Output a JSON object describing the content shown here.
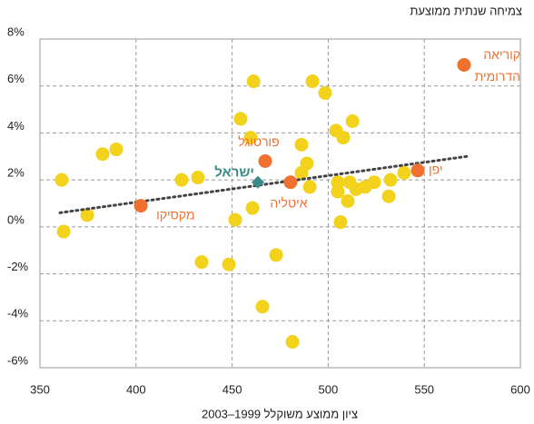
{
  "chart_data": {
    "type": "scatter",
    "title": "צמיחה שנתית ממוצעת",
    "x_label": "ציון ממוצע משוקלל 1999–2003",
    "xlim": [
      350,
      600
    ],
    "xticks": [
      350,
      400,
      450,
      500,
      550,
      600
    ],
    "ylim": [
      -6,
      8
    ],
    "yticks": [
      {
        "value": -6,
        "label": "-6%"
      },
      {
        "value": -4,
        "label": "-4%"
      },
      {
        "value": -2,
        "label": "-2%"
      },
      {
        "value": 0,
        "label": "0%"
      },
      {
        "value": 2,
        "label": "2%"
      },
      {
        "value": 4,
        "label": "4%"
      },
      {
        "value": 6,
        "label": "6%"
      },
      {
        "value": 8,
        "label": "8%"
      }
    ],
    "grid": true,
    "series": [
      {
        "color": "#f2d21b",
        "x": [
          361.3,
          362.3,
          374.6,
          382.6,
          389.7,
          423.7,
          432.2,
          434.1,
          448.3,
          451.6,
          454.4,
          460.6,
          459.6,
          461.1,
          465.8,
          472.9,
          481.4,
          486.1,
          486.1,
          488.9,
          490.4,
          491.8,
          498.4,
          504.1,
          507.8,
          512.6,
          505.0,
          505.0,
          510.2,
          506.4,
          511.2,
          514.5,
          519.2,
          523.9,
          531.5,
          532.4,
          539.5
        ],
        "values": [
          2.0,
          -0.2,
          0.5,
          3.1,
          3.3,
          2.0,
          2.1,
          -1.5,
          -1.6,
          0.3,
          4.6,
          0.8,
          3.8,
          6.2,
          -3.4,
          -1.2,
          -4.9,
          3.5,
          2.3,
          2.7,
          1.7,
          6.2,
          5.7,
          4.1,
          3.8,
          4.5,
          1.9,
          1.5,
          1.1,
          0.2,
          1.9,
          1.6,
          1.7,
          1.9,
          1.3,
          2.0,
          2.3
        ]
      }
    ],
    "highlighted": [
      {
        "label": "מקסיקו",
        "x": 402.5,
        "y": 0.9,
        "color": "#f07030"
      },
      {
        "label": "פורטוגל",
        "x": 467.2,
        "y": 2.8,
        "color": "#f07030"
      },
      {
        "label": "איטליה",
        "x": 480.4,
        "y": 1.9,
        "color": "#f07030"
      },
      {
        "label": "יפן",
        "x": 546.6,
        "y": 2.4,
        "color": "#f07030"
      },
      {
        "label": [
          "קוריאה",
          "הדרומית"
        ],
        "x": 570.7,
        "y": 6.9,
        "color": "#f07030"
      }
    ],
    "israel": {
      "label": "ישראל",
      "x": 463.4,
      "y": 1.9,
      "color": "#3a8a8c"
    },
    "trendline": {
      "x": [
        360.4,
        572.1
      ],
      "values": [
        0.6,
        3.0
      ],
      "color": "#444444"
    }
  }
}
